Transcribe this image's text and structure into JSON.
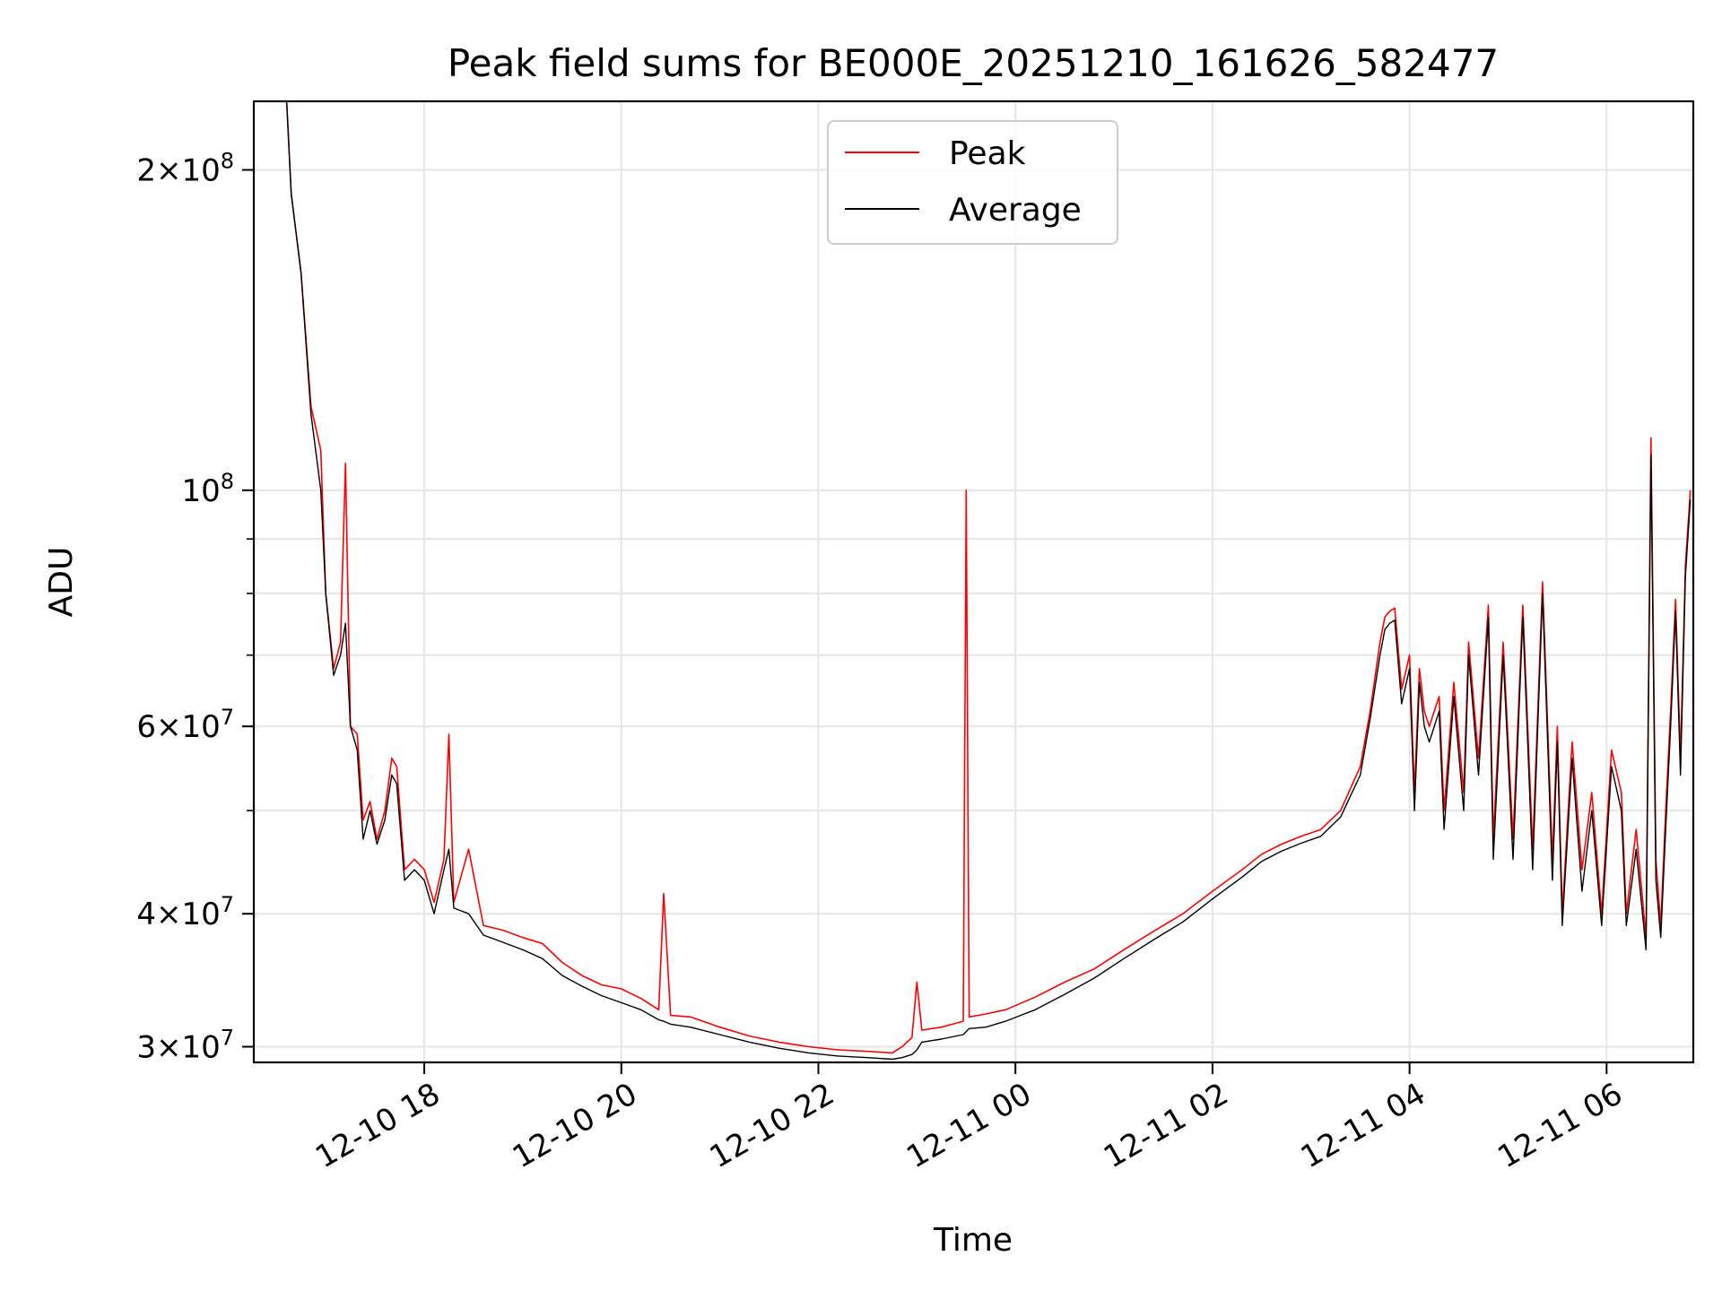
{
  "chart_data": {
    "type": "line",
    "title": "Peak field sums for BE000E_20251210_161626_582477",
    "xlabel": "Time",
    "ylabel": "ADU",
    "yscale": "log",
    "ylim": [
      29000000,
      232000000
    ],
    "xlim_hours": [
      16.27,
      30.88
    ],
    "grid": true,
    "legend_loc": "upper center",
    "x_ticks": [
      {
        "hour": 18,
        "label": "12-10 18"
      },
      {
        "hour": 20,
        "label": "12-10 20"
      },
      {
        "hour": 22,
        "label": "12-10 22"
      },
      {
        "hour": 24,
        "label": "12-11 00"
      },
      {
        "hour": 26,
        "label": "12-11 02"
      },
      {
        "hour": 28,
        "label": "12-11 04"
      },
      {
        "hour": 30,
        "label": "12-11 06"
      }
    ],
    "y_ticks": [
      {
        "value": 30000000,
        "mant": "3",
        "exp": "7"
      },
      {
        "value": 40000000,
        "mant": "4",
        "exp": "7"
      },
      {
        "value": 60000000,
        "mant": "6",
        "exp": "7"
      },
      {
        "value": 100000000,
        "mant": "",
        "exp": "8"
      },
      {
        "value": 200000000,
        "mant": "2",
        "exp": "8"
      }
    ],
    "y_minor_ticks": [
      50000000,
      70000000,
      80000000,
      90000000
    ],
    "series": [
      {
        "name": "Peak",
        "color": "#ff0000",
        "points": [
          [
            16.3,
            232000000
          ],
          [
            16.6,
            235000000
          ],
          [
            16.65,
            190000000
          ],
          [
            16.75,
            160000000
          ],
          [
            16.85,
            120000000
          ],
          [
            16.95,
            109000000
          ],
          [
            17.0,
            80000000
          ],
          [
            17.08,
            68000000
          ],
          [
            17.15,
            72000000
          ],
          [
            17.2,
            106000000
          ],
          [
            17.25,
            60000000
          ],
          [
            17.32,
            59000000
          ],
          [
            17.38,
            49000000
          ],
          [
            17.45,
            51000000
          ],
          [
            17.52,
            47000000
          ],
          [
            17.6,
            50000000
          ],
          [
            17.67,
            56000000
          ],
          [
            17.72,
            55000000
          ],
          [
            17.8,
            44000000
          ],
          [
            17.9,
            45000000
          ],
          [
            18.0,
            44000000
          ],
          [
            18.1,
            41000000
          ],
          [
            18.2,
            45000000
          ],
          [
            18.25,
            59000000
          ],
          [
            18.3,
            41000000
          ],
          [
            18.45,
            46000000
          ],
          [
            18.6,
            39000000
          ],
          [
            18.8,
            38600000
          ],
          [
            19.0,
            38000000
          ],
          [
            19.2,
            37500000
          ],
          [
            19.4,
            36000000
          ],
          [
            19.6,
            35000000
          ],
          [
            19.8,
            34300000
          ],
          [
            20.0,
            34000000
          ],
          [
            20.2,
            33300000
          ],
          [
            20.38,
            32500000
          ],
          [
            20.43,
            41800000
          ],
          [
            20.5,
            32100000
          ],
          [
            20.7,
            32000000
          ],
          [
            21.0,
            31300000
          ],
          [
            21.3,
            30700000
          ],
          [
            21.6,
            30300000
          ],
          [
            21.9,
            30000000
          ],
          [
            22.2,
            29800000
          ],
          [
            22.5,
            29700000
          ],
          [
            22.75,
            29600000
          ],
          [
            22.85,
            30000000
          ],
          [
            22.95,
            30600000
          ],
          [
            23.0,
            34500000
          ],
          [
            23.05,
            31100000
          ],
          [
            23.25,
            31300000
          ],
          [
            23.47,
            31700000
          ],
          [
            23.5,
            100000000
          ],
          [
            23.53,
            32000000
          ],
          [
            23.7,
            32200000
          ],
          [
            23.9,
            32500000
          ],
          [
            24.2,
            33400000
          ],
          [
            24.5,
            34500000
          ],
          [
            24.8,
            35500000
          ],
          [
            25.1,
            37000000
          ],
          [
            25.4,
            38500000
          ],
          [
            25.7,
            40000000
          ],
          [
            26.0,
            42000000
          ],
          [
            26.3,
            44000000
          ],
          [
            26.5,
            45500000
          ],
          [
            26.7,
            46500000
          ],
          [
            26.9,
            47300000
          ],
          [
            27.1,
            48000000
          ],
          [
            27.3,
            50000000
          ],
          [
            27.5,
            55000000
          ],
          [
            27.6,
            62000000
          ],
          [
            27.7,
            72000000
          ],
          [
            27.75,
            76000000
          ],
          [
            27.8,
            77000000
          ],
          [
            27.85,
            77500000
          ],
          [
            27.92,
            65000000
          ],
          [
            28.0,
            70000000
          ],
          [
            28.05,
            52000000
          ],
          [
            28.1,
            68000000
          ],
          [
            28.15,
            62000000
          ],
          [
            28.2,
            60000000
          ],
          [
            28.3,
            64000000
          ],
          [
            28.35,
            50000000
          ],
          [
            28.45,
            66000000
          ],
          [
            28.55,
            52000000
          ],
          [
            28.6,
            72000000
          ],
          [
            28.7,
            56000000
          ],
          [
            28.8,
            78000000
          ],
          [
            28.85,
            47000000
          ],
          [
            28.95,
            72000000
          ],
          [
            29.05,
            47000000
          ],
          [
            29.15,
            78000000
          ],
          [
            29.25,
            46000000
          ],
          [
            29.35,
            82000000
          ],
          [
            29.45,
            45000000
          ],
          [
            29.5,
            60000000
          ],
          [
            29.55,
            40000000
          ],
          [
            29.65,
            58000000
          ],
          [
            29.75,
            44000000
          ],
          [
            29.85,
            52000000
          ],
          [
            29.95,
            40000000
          ],
          [
            30.05,
            57000000
          ],
          [
            30.15,
            52000000
          ],
          [
            30.2,
            40000000
          ],
          [
            30.3,
            48000000
          ],
          [
            30.4,
            38000000
          ],
          [
            30.45,
            112000000
          ],
          [
            30.5,
            45000000
          ],
          [
            30.55,
            39000000
          ],
          [
            30.6,
            50000000
          ],
          [
            30.65,
            62000000
          ],
          [
            30.7,
            79000000
          ],
          [
            30.75,
            56000000
          ],
          [
            30.8,
            85000000
          ],
          [
            30.85,
            100000000
          ]
        ]
      },
      {
        "name": "Average",
        "color": "#000000",
        "points": [
          [
            16.3,
            232000000
          ],
          [
            16.6,
            235000000
          ],
          [
            16.65,
            190000000
          ],
          [
            16.75,
            160000000
          ],
          [
            16.85,
            118000000
          ],
          [
            16.95,
            100000000
          ],
          [
            17.0,
            80000000
          ],
          [
            17.08,
            67000000
          ],
          [
            17.15,
            70000000
          ],
          [
            17.2,
            75000000
          ],
          [
            17.25,
            60000000
          ],
          [
            17.32,
            57000000
          ],
          [
            17.38,
            47000000
          ],
          [
            17.45,
            50000000
          ],
          [
            17.52,
            46500000
          ],
          [
            17.6,
            49000000
          ],
          [
            17.67,
            54000000
          ],
          [
            17.72,
            53000000
          ],
          [
            17.8,
            43000000
          ],
          [
            17.9,
            44000000
          ],
          [
            18.0,
            43000000
          ],
          [
            18.1,
            40000000
          ],
          [
            18.2,
            44000000
          ],
          [
            18.25,
            46000000
          ],
          [
            18.3,
            40500000
          ],
          [
            18.45,
            40000000
          ],
          [
            18.6,
            38200000
          ],
          [
            18.8,
            37600000
          ],
          [
            19.0,
            37000000
          ],
          [
            19.2,
            36300000
          ],
          [
            19.4,
            35000000
          ],
          [
            19.6,
            34200000
          ],
          [
            19.8,
            33500000
          ],
          [
            20.0,
            33000000
          ],
          [
            20.2,
            32500000
          ],
          [
            20.38,
            31800000
          ],
          [
            20.43,
            31700000
          ],
          [
            20.5,
            31500000
          ],
          [
            20.7,
            31300000
          ],
          [
            21.0,
            30800000
          ],
          [
            21.3,
            30300000
          ],
          [
            21.6,
            29900000
          ],
          [
            21.9,
            29600000
          ],
          [
            22.2,
            29400000
          ],
          [
            22.5,
            29300000
          ],
          [
            22.75,
            29200000
          ],
          [
            22.85,
            29300000
          ],
          [
            22.95,
            29500000
          ],
          [
            23.0,
            29800000
          ],
          [
            23.05,
            30300000
          ],
          [
            23.25,
            30500000
          ],
          [
            23.47,
            30800000
          ],
          [
            23.5,
            31000000
          ],
          [
            23.53,
            31200000
          ],
          [
            23.7,
            31300000
          ],
          [
            23.9,
            31700000
          ],
          [
            24.2,
            32500000
          ],
          [
            24.5,
            33600000
          ],
          [
            24.8,
            34800000
          ],
          [
            25.1,
            36300000
          ],
          [
            25.4,
            37800000
          ],
          [
            25.7,
            39300000
          ],
          [
            26.0,
            41300000
          ],
          [
            26.3,
            43300000
          ],
          [
            26.5,
            44800000
          ],
          [
            26.7,
            45800000
          ],
          [
            26.9,
            46600000
          ],
          [
            27.1,
            47300000
          ],
          [
            27.3,
            49300000
          ],
          [
            27.5,
            54000000
          ],
          [
            27.6,
            61000000
          ],
          [
            27.7,
            70000000
          ],
          [
            27.75,
            74000000
          ],
          [
            27.8,
            75000000
          ],
          [
            27.85,
            75500000
          ],
          [
            27.92,
            63000000
          ],
          [
            28.0,
            68000000
          ],
          [
            28.05,
            50000000
          ],
          [
            28.1,
            66000000
          ],
          [
            28.15,
            60000000
          ],
          [
            28.2,
            58000000
          ],
          [
            28.3,
            62000000
          ],
          [
            28.35,
            48000000
          ],
          [
            28.45,
            64000000
          ],
          [
            28.55,
            50000000
          ],
          [
            28.6,
            70000000
          ],
          [
            28.7,
            54000000
          ],
          [
            28.8,
            76000000
          ],
          [
            28.85,
            45000000
          ],
          [
            28.95,
            70000000
          ],
          [
            29.05,
            45000000
          ],
          [
            29.15,
            76000000
          ],
          [
            29.25,
            44000000
          ],
          [
            29.35,
            80000000
          ],
          [
            29.45,
            43000000
          ],
          [
            29.5,
            58000000
          ],
          [
            29.55,
            39000000
          ],
          [
            29.65,
            56000000
          ],
          [
            29.75,
            42000000
          ],
          [
            29.85,
            50000000
          ],
          [
            29.95,
            39000000
          ],
          [
            30.05,
            55000000
          ],
          [
            30.15,
            50000000
          ],
          [
            30.2,
            39000000
          ],
          [
            30.3,
            46000000
          ],
          [
            30.4,
            37000000
          ],
          [
            30.45,
            108000000
          ],
          [
            30.5,
            43000000
          ],
          [
            30.55,
            38000000
          ],
          [
            30.6,
            48000000
          ],
          [
            30.65,
            60000000
          ],
          [
            30.7,
            77000000
          ],
          [
            30.75,
            54000000
          ],
          [
            30.8,
            83000000
          ],
          [
            30.85,
            98000000
          ]
        ]
      }
    ]
  }
}
